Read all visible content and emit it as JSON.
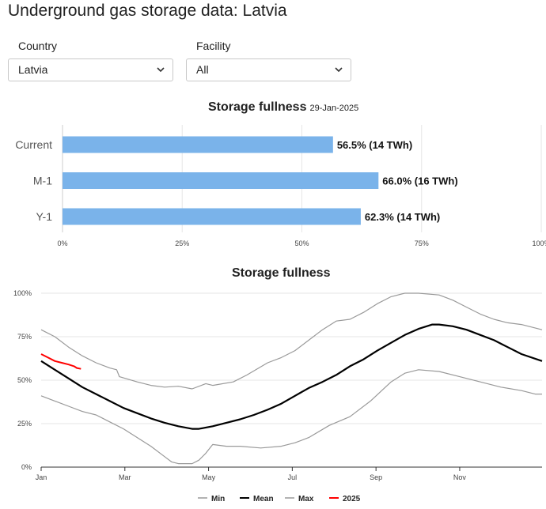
{
  "page": {
    "title": "Underground gas storage data: Latvia"
  },
  "filters": {
    "country": {
      "label": "Country",
      "value": "Latvia",
      "icon": "chevron-down-icon"
    },
    "facility": {
      "label": "Facility",
      "value": "All",
      "icon": "chevron-down-icon"
    }
  },
  "colors": {
    "bar": "#7ab3ea",
    "min": "#999999",
    "mean": "#000000",
    "max": "#999999",
    "current": "#ff0000",
    "grid": "#e6e6e6"
  },
  "chart_data": [
    {
      "type": "bar",
      "orientation": "horizontal",
      "title": "Storage fullness",
      "subtitle": "29-Jan-2025",
      "categories": [
        "Current",
        "M-1",
        "Y-1"
      ],
      "values": [
        56.5,
        66.0,
        62.3
      ],
      "labels": [
        "56.5% (14 TWh)",
        "66.0% (16 TWh)",
        "62.3% (14 TWh)"
      ],
      "xlim": [
        0,
        100
      ],
      "xticks": [
        "0%",
        "25%",
        "50%",
        "75%",
        "100%"
      ],
      "grid": true
    },
    {
      "type": "line",
      "title": "Storage fullness",
      "ylim": [
        0,
        100
      ],
      "yticks": [
        "0%",
        "25%",
        "50%",
        "75%",
        "100%"
      ],
      "xticks": [
        "Jan",
        "Mar",
        "May",
        "Jul",
        "Sep",
        "Nov"
      ],
      "x_domain_days": [
        0,
        365
      ],
      "legend": "bottom",
      "grid": true,
      "series": [
        {
          "name": "Min",
          "color": "#999999",
          "points": [
            [
              0,
              41
            ],
            [
              10,
              38
            ],
            [
              20,
              35
            ],
            [
              30,
              32
            ],
            [
              40,
              30
            ],
            [
              50,
              26
            ],
            [
              60,
              22
            ],
            [
              70,
              17
            ],
            [
              80,
              12
            ],
            [
              90,
              6
            ],
            [
              95,
              3
            ],
            [
              100,
              2
            ],
            [
              110,
              2
            ],
            [
              115,
              4
            ],
            [
              120,
              8
            ],
            [
              125,
              13
            ],
            [
              135,
              12
            ],
            [
              145,
              12
            ],
            [
              160,
              11
            ],
            [
              175,
              12
            ],
            [
              185,
              14
            ],
            [
              195,
              17
            ],
            [
              210,
              24
            ],
            [
              225,
              29
            ],
            [
              240,
              38
            ],
            [
              255,
              49
            ],
            [
              265,
              54
            ],
            [
              275,
              56
            ],
            [
              290,
              55
            ],
            [
              305,
              52
            ],
            [
              320,
              49
            ],
            [
              335,
              46
            ],
            [
              350,
              44
            ],
            [
              360,
              42
            ],
            [
              365,
              42
            ]
          ]
        },
        {
          "name": "Mean",
          "color": "#000000",
          "points": [
            [
              0,
              61
            ],
            [
              10,
              56
            ],
            [
              20,
              51
            ],
            [
              30,
              46
            ],
            [
              40,
              42
            ],
            [
              50,
              38
            ],
            [
              60,
              34
            ],
            [
              70,
              31
            ],
            [
              80,
              28
            ],
            [
              90,
              25.5
            ],
            [
              100,
              23.5
            ],
            [
              110,
              22
            ],
            [
              115,
              22
            ],
            [
              125,
              23.5
            ],
            [
              135,
              25.5
            ],
            [
              145,
              27.5
            ],
            [
              155,
              30
            ],
            [
              165,
              33
            ],
            [
              175,
              36.5
            ],
            [
              185,
              41
            ],
            [
              195,
              45.5
            ],
            [
              205,
              49
            ],
            [
              215,
              53
            ],
            [
              225,
              58
            ],
            [
              235,
              62
            ],
            [
              245,
              67
            ],
            [
              255,
              71.5
            ],
            [
              265,
              76
            ],
            [
              275,
              79.5
            ],
            [
              285,
              82
            ],
            [
              290,
              82
            ],
            [
              300,
              81
            ],
            [
              310,
              79
            ],
            [
              320,
              76
            ],
            [
              330,
              73
            ],
            [
              340,
              69
            ],
            [
              350,
              65
            ],
            [
              365,
              61
            ]
          ]
        },
        {
          "name": "Max",
          "color": "#999999",
          "points": [
            [
              0,
              79
            ],
            [
              10,
              75
            ],
            [
              20,
              69
            ],
            [
              30,
              64
            ],
            [
              40,
              60
            ],
            [
              50,
              57
            ],
            [
              55,
              56
            ],
            [
              57,
              52
            ],
            [
              70,
              49
            ],
            [
              80,
              47
            ],
            [
              90,
              46
            ],
            [
              100,
              46.5
            ],
            [
              110,
              45
            ],
            [
              120,
              48
            ],
            [
              125,
              47
            ],
            [
              140,
              49
            ],
            [
              150,
              53
            ],
            [
              165,
              60
            ],
            [
              175,
              63
            ],
            [
              185,
              67
            ],
            [
              195,
              73
            ],
            [
              205,
              79
            ],
            [
              215,
              84
            ],
            [
              225,
              85
            ],
            [
              235,
              89
            ],
            [
              245,
              94
            ],
            [
              255,
              98
            ],
            [
              265,
              100
            ],
            [
              275,
              100
            ],
            [
              290,
              99
            ],
            [
              300,
              96
            ],
            [
              310,
              92
            ],
            [
              320,
              88
            ],
            [
              330,
              85
            ],
            [
              340,
              83
            ],
            [
              350,
              82
            ],
            [
              365,
              79
            ]
          ]
        },
        {
          "name": "2025",
          "color": "#ff0000",
          "points": [
            [
              0,
              65
            ],
            [
              5,
              63
            ],
            [
              10,
              61
            ],
            [
              15,
              60
            ],
            [
              20,
              59
            ],
            [
              24,
              58
            ],
            [
              26,
              57
            ],
            [
              29,
              56.5
            ]
          ]
        }
      ]
    }
  ]
}
